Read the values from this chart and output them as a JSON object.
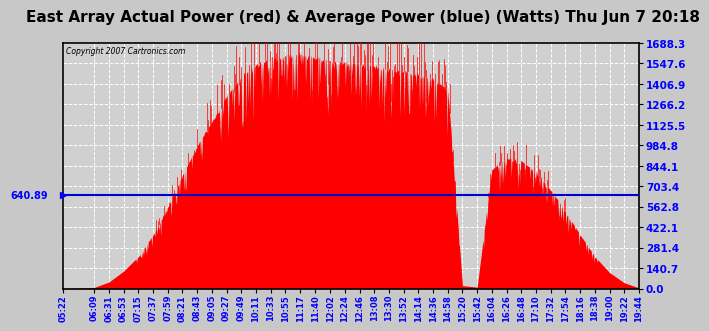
{
  "title": "East Array Actual Power (red) & Average Power (blue) (Watts) Thu Jun 7 20:18",
  "copyright": "Copyright 2007 Cartronics.com",
  "avg_power": 640.89,
  "y_max": 1688.3,
  "y_ticks": [
    0.0,
    140.7,
    281.4,
    422.1,
    562.8,
    703.4,
    844.1,
    984.8,
    1125.5,
    1266.2,
    1406.9,
    1547.6,
    1688.3
  ],
  "background_color": "#c8c8c8",
  "plot_bg_color": "#d0d0d0",
  "fill_color": "#ff0000",
  "line_color": "#0000cc",
  "grid_color": "#ffffff",
  "title_fontsize": 11,
  "x_labels": [
    "05:22",
    "06:09",
    "06:31",
    "06:53",
    "07:15",
    "07:37",
    "07:59",
    "08:21",
    "08:43",
    "09:05",
    "09:27",
    "09:49",
    "10:11",
    "10:33",
    "10:55",
    "11:17",
    "11:40",
    "12:02",
    "12:24",
    "12:46",
    "13:08",
    "13:30",
    "13:52",
    "14:14",
    "14:36",
    "14:58",
    "15:20",
    "15:42",
    "16:04",
    "16:26",
    "16:48",
    "17:10",
    "17:32",
    "17:54",
    "18:16",
    "18:38",
    "19:00",
    "19:22",
    "19:44"
  ],
  "power_values": [
    0,
    8,
    45,
    120,
    220,
    370,
    560,
    780,
    980,
    1150,
    1320,
    1460,
    1540,
    1580,
    1600,
    1610,
    1590,
    1570,
    1560,
    1545,
    1530,
    1510,
    1490,
    1470,
    1440,
    1380,
    20,
    10,
    820,
    900,
    880,
    800,
    680,
    530,
    370,
    220,
    110,
    40,
    5
  ]
}
